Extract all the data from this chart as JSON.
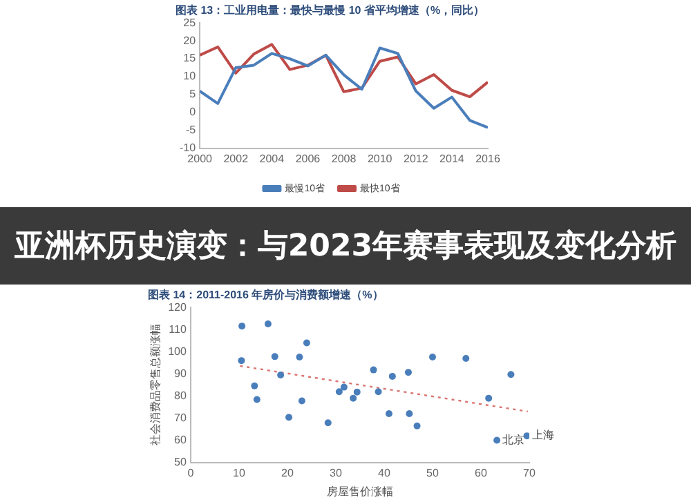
{
  "chart_data": [
    {
      "type": "line",
      "title": "图表 13：工业用电量：最快与最慢 10 省平均增速（%，同比）",
      "x": [
        2000,
        2001,
        2002,
        2003,
        2004,
        2005,
        2006,
        2007,
        2008,
        2009,
        2010,
        2011,
        2012,
        2013,
        2014,
        2015,
        2016
      ],
      "series": [
        {
          "name": "最慢10省",
          "color": "#4a7ebb",
          "values": [
            6,
            2.5,
            12.5,
            13.2,
            16.5,
            15,
            13,
            16,
            10.5,
            6.5,
            18,
            16.5,
            6,
            1.2,
            4.3,
            -2.2,
            -4.2
          ]
        },
        {
          "name": "最快10省",
          "color": "#be4b48",
          "values": [
            16,
            18.3,
            11,
            16.3,
            19,
            12,
            13.2,
            16,
            5.8,
            6.8,
            14.3,
            15.5,
            8,
            10.6,
            6.2,
            4.4,
            8.5
          ]
        }
      ],
      "xlim": [
        2000,
        2016
      ],
      "xticks": [
        2000,
        2002,
        2004,
        2006,
        2008,
        2010,
        2012,
        2014,
        2016
      ],
      "ylim": [
        -10,
        25
      ],
      "yticks": [
        -10,
        -5,
        0,
        5,
        10,
        15,
        20,
        25
      ],
      "grid": false,
      "legend": "bottom",
      "marker": "none",
      "line_style": "solid",
      "annotations": [
        "亚洲杯历史演变：与2023年赛事表现及变化分析"
      ]
    },
    {
      "type": "scatter",
      "title": "图表 14：2011-2016 年房价与消费额增速（%）",
      "ylabel": "社会消费品零售总额涨幅",
      "xlabel": "房屋售价涨幅",
      "series": [
        {
          "type": "scatter",
          "color": "#4a7ebb",
          "x": [
            10.6,
            16,
            10.5,
            24,
            17.4,
            22.5,
            18.6,
            13.2,
            13.7,
            23,
            20.3,
            28.4,
            31.7,
            30.7,
            34.4,
            33.6,
            37.8,
            41.7,
            38.8,
            45,
            41,
            45.2,
            46.8,
            50,
            56.9,
            66.2,
            61.6,
            63.3,
            69.5
          ],
          "values": [
            111.6,
            112.6,
            96,
            104,
            97.8,
            97.6,
            89.5,
            84.6,
            78.4,
            77.8,
            70.4,
            67.9,
            84,
            81.9,
            81.8,
            79,
            91.8,
            88.9,
            81.9,
            90.7,
            72,
            72,
            66.5,
            97.6,
            97,
            89.7,
            79,
            60,
            62
          ]
        },
        {
          "type": "line",
          "color": "#d9736f",
          "line_style": "dotted",
          "marker": "none",
          "x": [
            10.2,
            69.7
          ],
          "values": [
            93.6,
            73
          ]
        }
      ],
      "xlim": [
        0,
        70
      ],
      "xticks": [
        0,
        10,
        20,
        30,
        40,
        50,
        60,
        70
      ],
      "ylim": [
        50,
        120
      ],
      "yticks": [
        50,
        60,
        70,
        80,
        90,
        100,
        110,
        120
      ],
      "grid": false,
      "legend": false,
      "marker": "circle",
      "annotations": [
        {
          "text": "北京",
          "x": 63.3,
          "y": 60
        },
        {
          "text": "上海",
          "x": 69.5,
          "y": 62
        }
      ]
    }
  ]
}
